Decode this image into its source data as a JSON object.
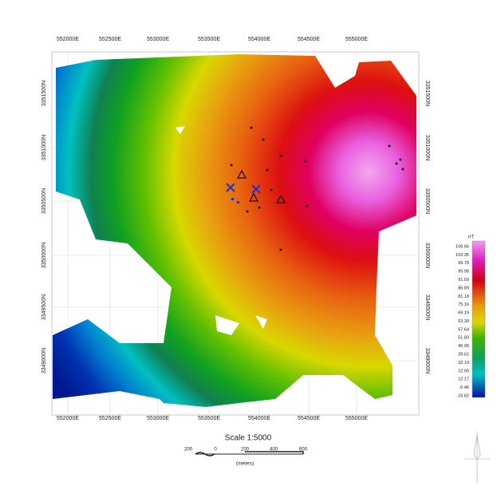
{
  "map": {
    "x_labels": [
      "552000E",
      "552500E",
      "553000E",
      "553500E",
      "554000E",
      "554500E",
      "555000E"
    ],
    "y_labels": [
      "3351500N",
      "3351000N",
      "3350500N",
      "3350000N",
      "3349500N",
      "3349000N"
    ],
    "legend": {
      "unit": "nT",
      "values": [
        "106.66",
        "103.35",
        "99.78",
        "95.98",
        "91.69",
        "86.89",
        "81.18",
        "75.16",
        "69.19",
        "63.39",
        "57.64",
        "51.83",
        "45.95",
        "39.61",
        "32.19",
        "22.99",
        "12.17",
        "-0.46",
        "-16.62"
      ]
    },
    "scale": {
      "title": "Scale 1:5000",
      "ticks": [
        "200",
        "0",
        "200",
        "400",
        "600"
      ],
      "unit": "(meters)"
    }
  }
}
